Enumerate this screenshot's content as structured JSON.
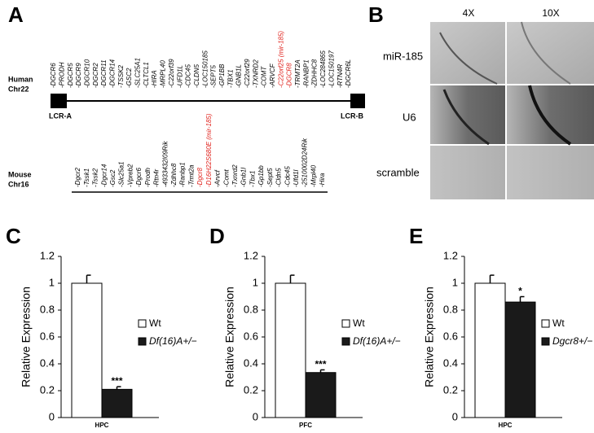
{
  "panel_a": {
    "label": "A",
    "human": {
      "name": [
        "Human",
        "Chr22"
      ],
      "left_box": "LCR-A",
      "right_box": "LCR-B",
      "genes": [
        "-DGCR6",
        "-PRODH",
        "-DGCR5",
        "-DGCR9",
        "-DGCR10",
        "-DGCR2",
        "-DGCR11",
        "-DGCR14",
        "-TSSK2",
        "-GSC2",
        "-SLC25A1",
        "-CLTCL1",
        "-HIRA",
        "-MRPL40",
        "-C22orf39",
        "-UFD1L",
        "-CDC45",
        "-CLDN5",
        "-LOC150185",
        "-SEPT5",
        "-GP1BB",
        "-TBX1",
        "-GNB1L",
        "-C22orf29",
        "-TXNRD2",
        "-COMT",
        "-ARVCF",
        {
          "text": "-C22orf25 (mir-185)",
          "color": "#e0211b"
        },
        {
          "text": "-DGCR8",
          "color": "#e0211b"
        },
        "-TRMT2A",
        "-RANBP1",
        "-ZDHHC8",
        "-LOC284865",
        "-LOC150197",
        "-RTN4R",
        "-DGCR6L"
      ]
    },
    "mouse": {
      "name": [
        "Mouse",
        "Chr16"
      ],
      "genes": [
        "-Dgcr2",
        "-Tssk1",
        "-Tssk2",
        "-Dgcr14",
        "-Gsc2",
        "-Slc25a1",
        "-Vpreb2",
        "-Dgcr6",
        "-Prodh",
        "-Rtn4r",
        "-4933432I09Rik",
        "-Zdhhc8",
        "-Ranbp1",
        "-Trmt2a",
        {
          "text": "-Dgcr8",
          "color": "#e0211b"
        },
        {
          "text": "-D16H22S680E (mir-185)",
          "color": "#e0211b"
        },
        "-Arvcf",
        "-Comt",
        "-Txnrd2",
        "-Gnb1l",
        "-Tbx1",
        "-Gp1bb",
        "-Sept5",
        "-Cldn5",
        "-Cdc45",
        "-Ufd1l",
        "-2510002D24Rik",
        "-Mrpl40",
        "-Hira"
      ]
    }
  },
  "panel_b": {
    "label": "B",
    "columns": [
      "4X",
      "10X"
    ],
    "rows": [
      "miR-185",
      "U6",
      "scramble"
    ]
  },
  "chart_data": [
    {
      "type": "bar",
      "label": "C",
      "ylabel": "Relative Expression",
      "categories": [
        "HPC"
      ],
      "ylim": [
        0,
        1.2
      ],
      "yticks": [
        0,
        0.2,
        0.4,
        0.6,
        0.8,
        1,
        1.2
      ],
      "series": [
        {
          "name": "Wt",
          "color": "#ffffff",
          "values": [
            1
          ],
          "errors": [
            0.06
          ]
        },
        {
          "name": "Df(16)A+/−",
          "color": "#1a1a1a",
          "values": [
            0.21
          ],
          "errors": [
            0.02
          ],
          "significance": "***"
        }
      ]
    },
    {
      "type": "bar",
      "label": "D",
      "ylabel": "Relative Expression",
      "categories": [
        "PFC"
      ],
      "ylim": [
        0,
        1.2
      ],
      "yticks": [
        0,
        0.2,
        0.4,
        0.6,
        0.8,
        1,
        1.2
      ],
      "series": [
        {
          "name": "Wt",
          "color": "#ffffff",
          "values": [
            1
          ],
          "errors": [
            0.06
          ]
        },
        {
          "name": "Df(16)A+/−",
          "color": "#1a1a1a",
          "values": [
            0.335
          ],
          "errors": [
            0.02
          ],
          "significance": "***"
        }
      ]
    },
    {
      "type": "bar",
      "label": "E",
      "ylabel": "Relative Expression",
      "categories": [
        "HPC"
      ],
      "ylim": [
        0,
        1.2
      ],
      "yticks": [
        0,
        0.2,
        0.4,
        0.6,
        0.8,
        1,
        1.2
      ],
      "series": [
        {
          "name": "Wt",
          "color": "#ffffff",
          "values": [
            1
          ],
          "errors": [
            0.06
          ]
        },
        {
          "name": "Dgcr8+/−",
          "color": "#1a1a1a",
          "values": [
            0.86
          ],
          "errors": [
            0.04
          ],
          "significance": "*"
        }
      ]
    }
  ]
}
